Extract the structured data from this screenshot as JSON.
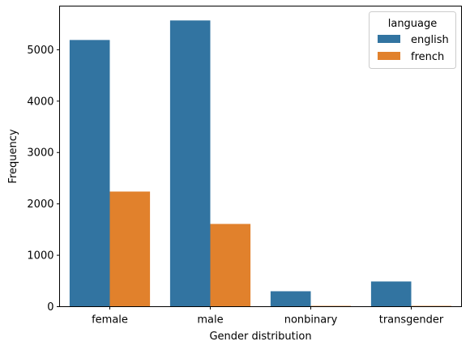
{
  "chart_data": {
    "type": "bar",
    "categories": [
      "female",
      "male",
      "nonbinary",
      "transgender"
    ],
    "series": [
      {
        "name": "english",
        "color": "#3274a1",
        "values": [
          5190,
          5570,
          300,
          490
        ]
      },
      {
        "name": "french",
        "color": "#e1812c",
        "values": [
          2240,
          1610,
          15,
          15
        ]
      }
    ],
    "xlabel": "Gender distribution",
    "ylabel": "Frequency",
    "ylim": [
      0,
      5850
    ],
    "yticks": [
      0,
      1000,
      2000,
      3000,
      4000,
      5000
    ],
    "legend": {
      "title": "language",
      "position": "top-right"
    },
    "grid": false
  }
}
